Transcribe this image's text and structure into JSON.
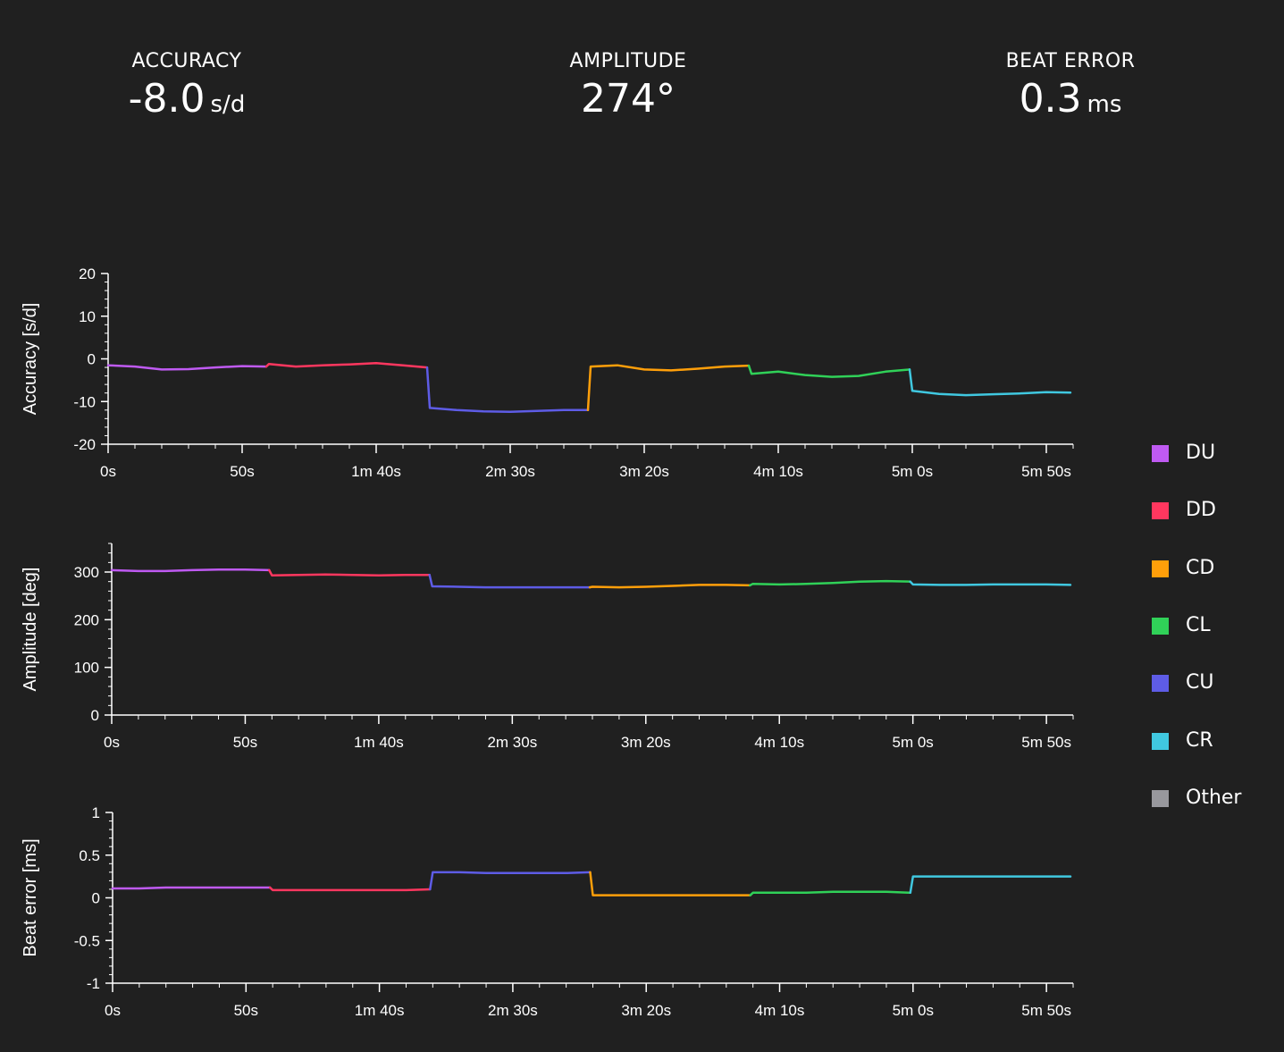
{
  "metrics": {
    "accuracy": {
      "label": "ACCURACY",
      "value": "-8.0",
      "unit": "s/d"
    },
    "amplitude": {
      "label": "AMPLITUDE",
      "value": "274°",
      "unit": ""
    },
    "beat_error": {
      "label": "BEAT ERROR",
      "value": "0.3",
      "unit": "ms"
    }
  },
  "legend": [
    {
      "name": "DU",
      "color": "#bf5af2"
    },
    {
      "name": "DD",
      "color": "#ff375f"
    },
    {
      "name": "CD",
      "color": "#ff9f0a"
    },
    {
      "name": "CL",
      "color": "#30d158"
    },
    {
      "name": "CU",
      "color": "#5e5ce6"
    },
    {
      "name": "CR",
      "color": "#40c8e0"
    },
    {
      "name": "Other",
      "color": "#98989d"
    }
  ],
  "chart_data": [
    {
      "type": "line",
      "ylabel": "Accuracy [s/d]",
      "xlim": [
        0,
        360
      ],
      "ylim": [
        -20,
        20
      ],
      "yticks": [
        -20,
        -10,
        0,
        10,
        20
      ],
      "yticklabels": [
        "-20",
        "-10",
        "0",
        "10",
        "20"
      ],
      "xticks": [
        0,
        50,
        100,
        150,
        200,
        250,
        300,
        350
      ],
      "xticklabels": [
        "0s",
        "50s",
        "1m 40s",
        "2m 30s",
        "3m 20s",
        "4m 10s",
        "5m 0s",
        "5m 50s"
      ],
      "series": [
        {
          "name": "DU",
          "x": [
            0,
            10,
            20,
            30,
            40,
            50,
            59
          ],
          "y": [
            -1.5,
            -1.8,
            -2.5,
            -2.4,
            -2.0,
            -1.7,
            -1.8
          ]
        },
        {
          "name": "DD",
          "x": [
            60,
            70,
            80,
            90,
            100,
            110,
            119
          ],
          "y": [
            -1.2,
            -1.8,
            -1.5,
            -1.3,
            -1.0,
            -1.5,
            -2.0
          ]
        },
        {
          "name": "CU",
          "x": [
            120,
            130,
            140,
            150,
            160,
            170,
            179
          ],
          "y": [
            -11.5,
            -12.0,
            -12.3,
            -12.4,
            -12.2,
            -12.0,
            -12.0
          ]
        },
        {
          "name": "CD",
          "x": [
            180,
            190,
            200,
            210,
            220,
            230,
            239
          ],
          "y": [
            -1.8,
            -1.5,
            -2.5,
            -2.7,
            -2.3,
            -1.8,
            -1.6
          ]
        },
        {
          "name": "CL",
          "x": [
            240,
            250,
            260,
            270,
            280,
            290,
            299
          ],
          "y": [
            -3.5,
            -3.0,
            -3.8,
            -4.2,
            -4.0,
            -3.0,
            -2.5
          ]
        },
        {
          "name": "CR",
          "x": [
            300,
            310,
            320,
            330,
            340,
            350,
            359
          ],
          "y": [
            -7.5,
            -8.2,
            -8.5,
            -8.3,
            -8.1,
            -7.8,
            -7.9
          ]
        }
      ]
    },
    {
      "type": "line",
      "ylabel": "Amplitude [deg]",
      "xlim": [
        0,
        360
      ],
      "ylim": [
        0,
        360
      ],
      "yticks": [
        0,
        100,
        200,
        300
      ],
      "yticklabels": [
        "0",
        "100",
        "200",
        "300"
      ],
      "xticks": [
        0,
        50,
        100,
        150,
        200,
        250,
        300,
        350
      ],
      "xticklabels": [
        "0s",
        "50s",
        "1m 40s",
        "2m 30s",
        "3m 20s",
        "4m 10s",
        "5m 0s",
        "5m 50s"
      ],
      "series": [
        {
          "name": "DU",
          "x": [
            0,
            10,
            20,
            30,
            40,
            50,
            59
          ],
          "y": [
            304,
            302,
            302,
            304,
            305,
            305,
            304
          ]
        },
        {
          "name": "DD",
          "x": [
            60,
            70,
            80,
            90,
            100,
            110,
            119
          ],
          "y": [
            293,
            294,
            295,
            294,
            293,
            294,
            294
          ]
        },
        {
          "name": "CU",
          "x": [
            120,
            130,
            140,
            150,
            160,
            170,
            179
          ],
          "y": [
            270,
            269,
            268,
            268,
            268,
            268,
            268
          ]
        },
        {
          "name": "CD",
          "x": [
            180,
            190,
            200,
            210,
            220,
            230,
            239
          ],
          "y": [
            269,
            268,
            269,
            271,
            273,
            273,
            272
          ]
        },
        {
          "name": "CL",
          "x": [
            240,
            250,
            260,
            270,
            280,
            290,
            299
          ],
          "y": [
            275,
            274,
            275,
            277,
            280,
            281,
            280
          ]
        },
        {
          "name": "CR",
          "x": [
            300,
            310,
            320,
            330,
            340,
            350,
            359
          ],
          "y": [
            274,
            273,
            273,
            274,
            274,
            274,
            273
          ]
        }
      ]
    },
    {
      "type": "line",
      "ylabel": "Beat error [ms]",
      "xlim": [
        0,
        360
      ],
      "ylim": [
        -1,
        1
      ],
      "yticks": [
        -1,
        -0.5,
        0,
        0.5,
        1
      ],
      "yticklabels": [
        "-1",
        "-0.5",
        "0",
        "0.5",
        "1"
      ],
      "xticks": [
        0,
        50,
        100,
        150,
        200,
        250,
        300,
        350
      ],
      "xticklabels": [
        "0s",
        "50s",
        "1m 40s",
        "2m 30s",
        "3m 20s",
        "4m 10s",
        "5m 0s",
        "5m 50s"
      ],
      "series": [
        {
          "name": "DU",
          "x": [
            0,
            10,
            20,
            30,
            40,
            50,
            59
          ],
          "y": [
            0.11,
            0.11,
            0.12,
            0.12,
            0.12,
            0.12,
            0.12
          ]
        },
        {
          "name": "DD",
          "x": [
            60,
            70,
            80,
            90,
            100,
            110,
            119
          ],
          "y": [
            0.09,
            0.09,
            0.09,
            0.09,
            0.09,
            0.09,
            0.1
          ]
        },
        {
          "name": "CU",
          "x": [
            120,
            130,
            140,
            150,
            160,
            170,
            179
          ],
          "y": [
            0.3,
            0.3,
            0.29,
            0.29,
            0.29,
            0.29,
            0.3
          ]
        },
        {
          "name": "CD",
          "x": [
            180,
            190,
            200,
            210,
            220,
            230,
            239
          ],
          "y": [
            0.03,
            0.03,
            0.03,
            0.03,
            0.03,
            0.03,
            0.03
          ]
        },
        {
          "name": "CL",
          "x": [
            240,
            250,
            260,
            270,
            280,
            290,
            299
          ],
          "y": [
            0.06,
            0.06,
            0.06,
            0.07,
            0.07,
            0.07,
            0.06
          ]
        },
        {
          "name": "CR",
          "x": [
            300,
            310,
            320,
            330,
            340,
            350,
            359
          ],
          "y": [
            0.25,
            0.25,
            0.25,
            0.25,
            0.25,
            0.25,
            0.25
          ]
        }
      ]
    }
  ]
}
